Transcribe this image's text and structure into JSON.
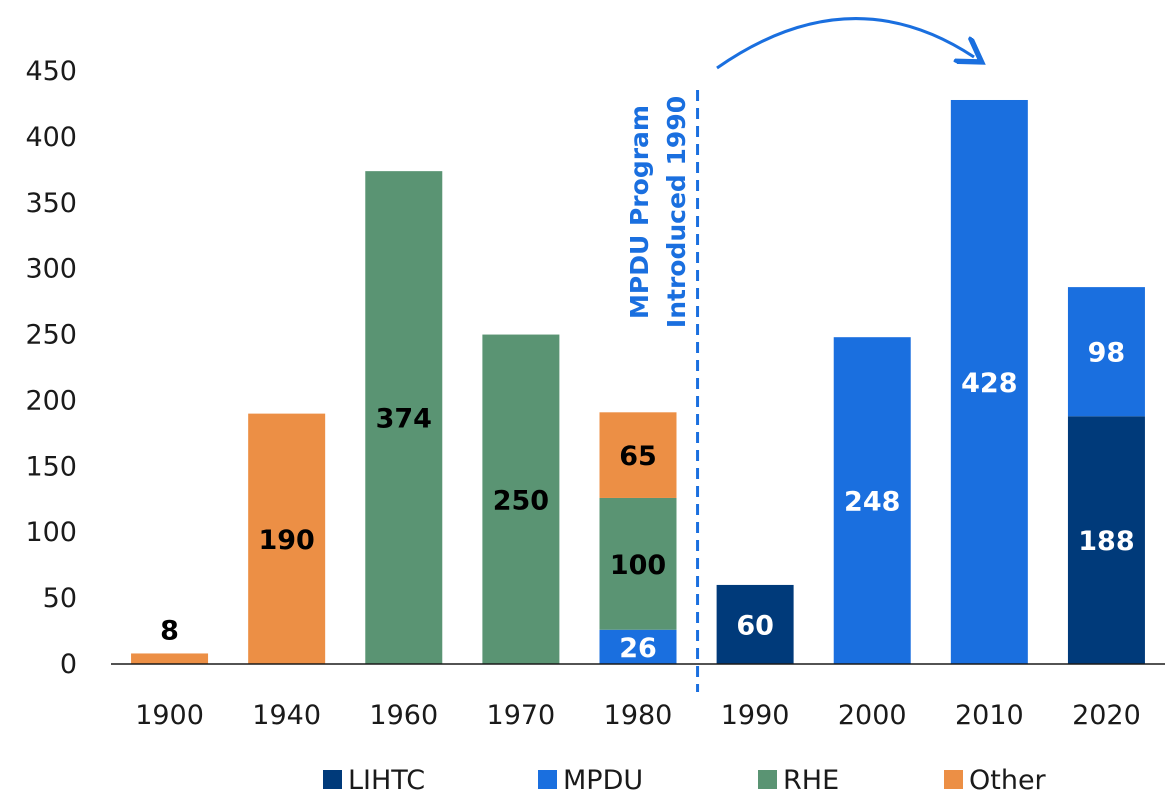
{
  "chart_data": {
    "type": "bar",
    "stacked": true,
    "title": "",
    "xlabel": "",
    "ylabel": "",
    "ylim": [
      0,
      450
    ],
    "yticks": [
      0,
      50,
      100,
      150,
      200,
      250,
      300,
      350,
      400,
      450
    ],
    "grid": false,
    "legend_position": "bottom",
    "categories": [
      "1900",
      "1940",
      "1960",
      "1970",
      "1980",
      "1990",
      "2000",
      "2010",
      "2020"
    ],
    "series": [
      {
        "name": "LIHTC",
        "color": "#003a7a",
        "label_color": "#ffffff",
        "values": [
          0,
          0,
          0,
          0,
          0,
          60,
          0,
          0,
          188
        ]
      },
      {
        "name": "MPDU",
        "color": "#1a6fdf",
        "label_color": "#ffffff",
        "values": [
          0,
          0,
          0,
          0,
          26,
          0,
          248,
          428,
          98
        ]
      },
      {
        "name": "RHE",
        "color": "#5a9473",
        "label_color": "#000000",
        "values": [
          0,
          0,
          374,
          250,
          100,
          0,
          0,
          0,
          0
        ]
      },
      {
        "name": "Other",
        "color": "#ec8f45",
        "label_color": "#000000",
        "values": [
          8,
          190,
          0,
          0,
          65,
          0,
          0,
          0,
          0
        ]
      }
    ],
    "annotation": {
      "lines": [
        "MPDU Program",
        "Introduced 1990"
      ],
      "color": "#1a6fdf",
      "divider_between": [
        "1980",
        "1990"
      ]
    }
  }
}
